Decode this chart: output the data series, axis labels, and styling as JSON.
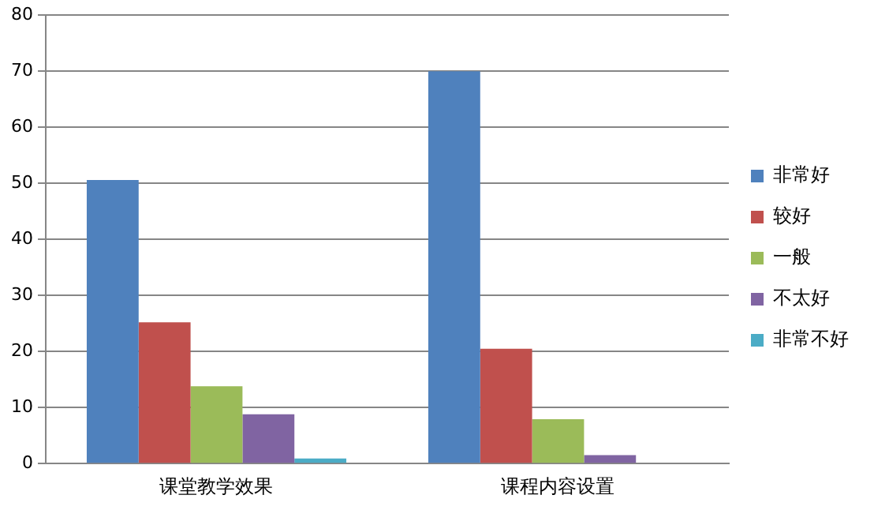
{
  "chart_data": {
    "type": "bar",
    "categories": [
      "课堂教学效果",
      "课程内容设置"
    ],
    "series": [
      {
        "name": "非常好",
        "color": "#4f81bd",
        "values": [
          50.6,
          70
        ]
      },
      {
        "name": "较好",
        "color": "#c0504d",
        "values": [
          25.2,
          20.5
        ]
      },
      {
        "name": "一般",
        "color": "#9bbb59",
        "values": [
          13.8,
          7.9
        ]
      },
      {
        "name": "不太好",
        "color": "#8064a2",
        "values": [
          8.8,
          1.5
        ]
      },
      {
        "name": "非常不好",
        "color": "#4bacc6",
        "values": [
          0.9,
          0
        ]
      }
    ],
    "ylim": [
      0,
      80
    ],
    "yticks": [
      0,
      10,
      20,
      30,
      40,
      50,
      60,
      70,
      80
    ],
    "grid": "y",
    "legend": "right"
  }
}
